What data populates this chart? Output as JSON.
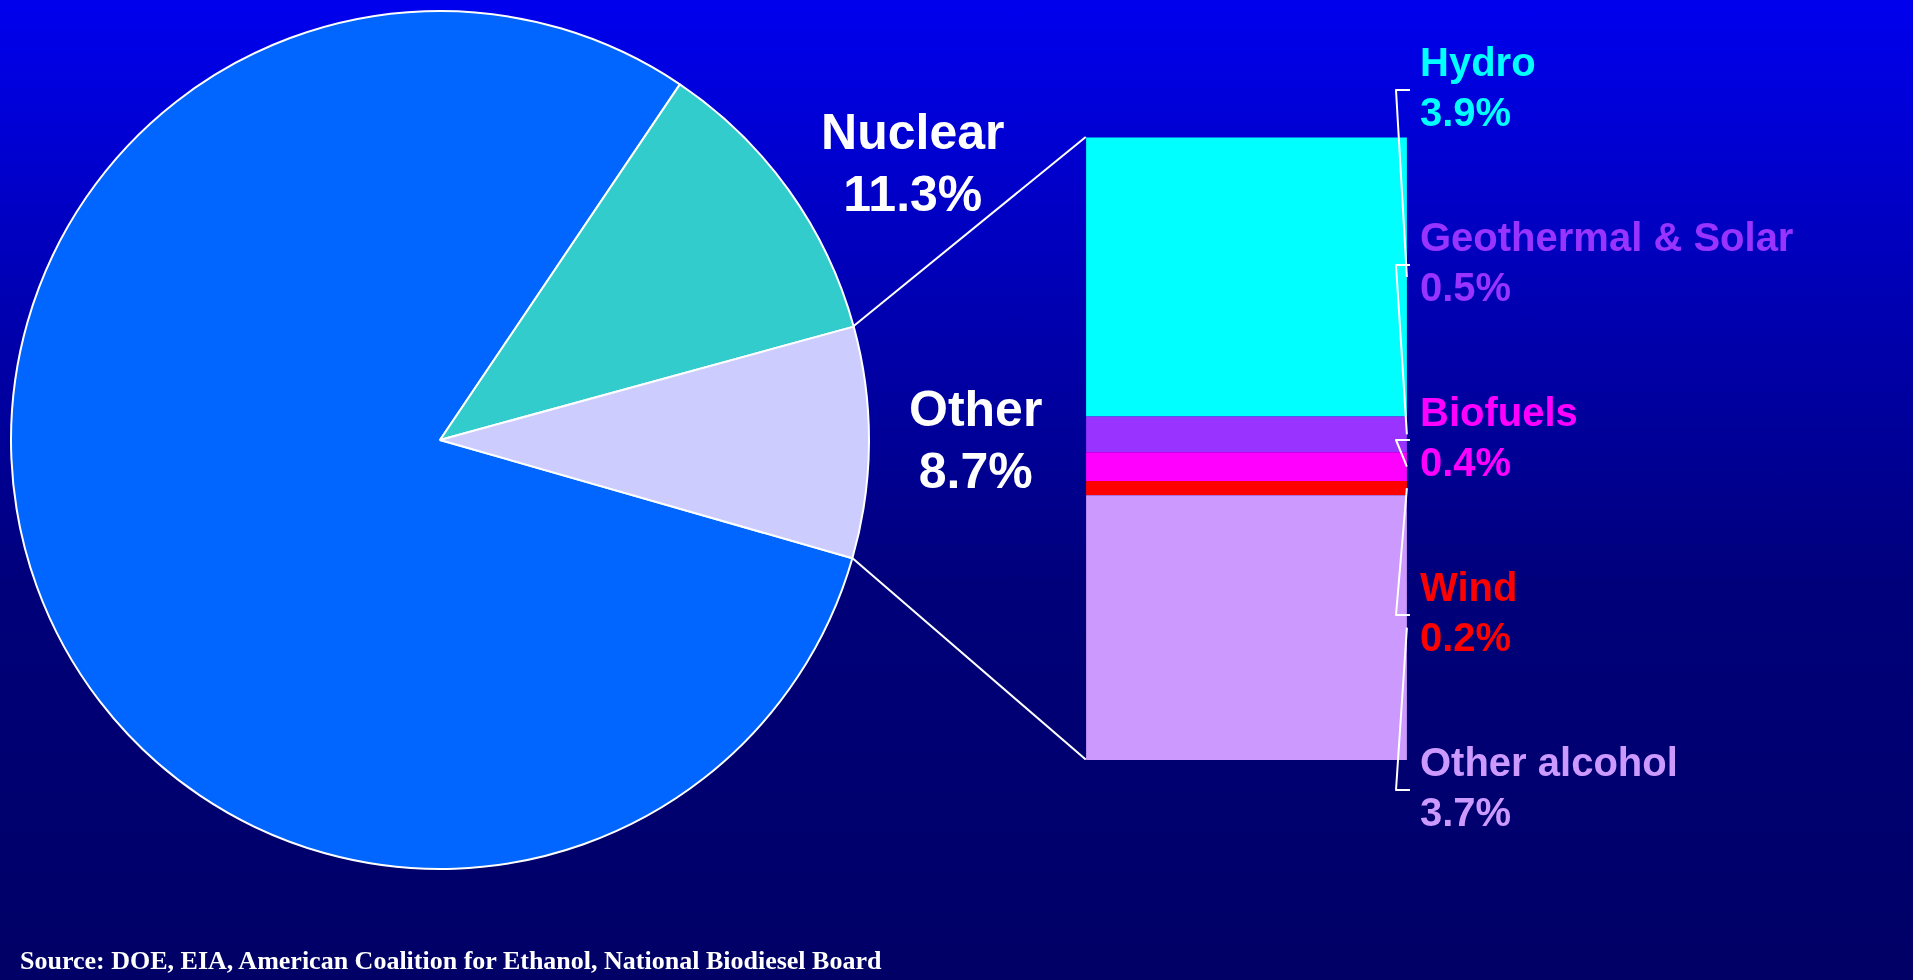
{
  "chart_data": [
    {
      "type": "pie",
      "categories": [
        null,
        "Nuclear",
        "Other"
      ],
      "values": [
        80.0,
        11.3,
        8.7
      ],
      "colors": [
        "#0066ff",
        "#33cccc",
        "#ccccff"
      ],
      "value_labels": [
        null,
        "11.3%",
        "8.7%"
      ],
      "legend": false,
      "annotations": [
        "Source: DOE, EIA, American Coalition for Ethanol, National Biodiesel Board"
      ]
    },
    {
      "type": "bar",
      "stacked": true,
      "categories": [
        null
      ],
      "legend": false,
      "series": [
        {
          "name": "Other alcohol",
          "color": "#cc99ff",
          "values": [
            3.7
          ],
          "value_labels": [
            "3.7%"
          ]
        },
        {
          "name": "Wind",
          "color": "#ff0000",
          "values": [
            0.2
          ],
          "value_labels": [
            "0.2%"
          ]
        },
        {
          "name": "Biofuels",
          "color": "#ff00ff",
          "values": [
            0.4
          ],
          "value_labels": [
            "0.4%"
          ]
        },
        {
          "name": "Geothermal & Solar",
          "color": "#9933ff",
          "values": [
            0.5
          ],
          "value_labels": [
            "0.5%"
          ]
        },
        {
          "name": "Hydro",
          "color": "#00ffff",
          "values": [
            3.9
          ],
          "value_labels": [
            "3.9%"
          ]
        }
      ]
    }
  ]
}
